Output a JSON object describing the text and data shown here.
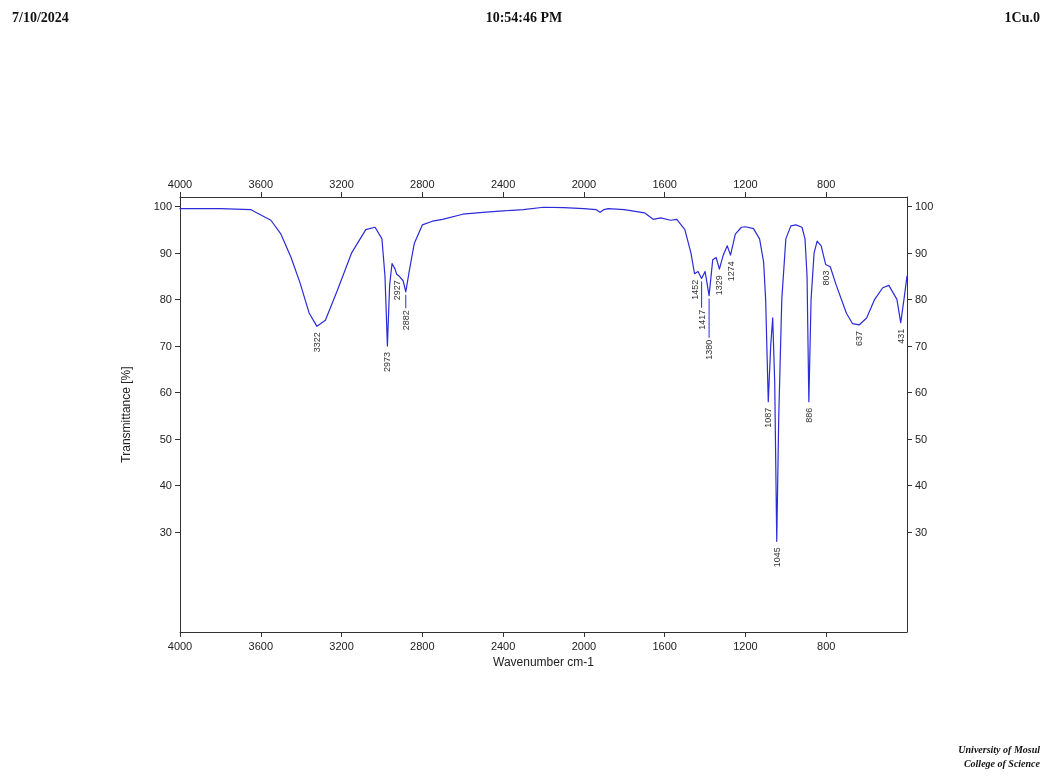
{
  "chart_data": {
    "type": "line",
    "xlabel": "Wavenumber cm-1",
    "ylabel": "Transmittance [%]",
    "annotations": [
      "7/10/2024",
      "10:54:46 PM",
      "1Cu.0",
      "University of Mosul",
      "College of Science",
      {
        "text": "3322",
        "x": 3322,
        "y": 74.2
      },
      {
        "text": "2973",
        "x": 2973,
        "y": 70
      },
      {
        "text": "2927",
        "x": 2927,
        "y": 85.4
      },
      {
        "text": "2882",
        "x": 2882,
        "y": 81.6
      },
      {
        "text": "1452",
        "x": 1452,
        "y": 85.5
      },
      {
        "text": "1417",
        "x": 1417,
        "y": 84.5
      },
      {
        "text": "1380",
        "x": 1380,
        "y": 80.8
      },
      {
        "text": "1329",
        "x": 1329,
        "y": 86.5
      },
      {
        "text": "1274",
        "x": 1274,
        "y": 89.5
      },
      {
        "text": "1087",
        "x": 1087,
        "y": 58
      },
      {
        "text": "1045",
        "x": 1045,
        "y": 28
      },
      {
        "text": "886",
        "x": 886,
        "y": 58
      },
      {
        "text": "803",
        "x": 803,
        "y": 87.5
      },
      {
        "text": "637",
        "x": 637,
        "y": 74.5
      },
      {
        "text": "431",
        "x": 431,
        "y": 75
      }
    ],
    "series": [
      {
        "color": "#2b2bd9",
        "x": [
          4000,
          3800,
          3650,
          3550,
          3500,
          3450,
          3406,
          3360,
          3322,
          3280,
          3220,
          3150,
          3080,
          3034,
          3000,
          2985,
          2973,
          2962,
          2950,
          2935,
          2927,
          2915,
          2895,
          2882,
          2865,
          2840,
          2800,
          2750,
          2700,
          2600,
          2500,
          2400,
          2300,
          2200,
          2100,
          2000,
          1940,
          1920,
          1900,
          1880,
          1800,
          1700,
          1657,
          1620,
          1570,
          1540,
          1500,
          1470,
          1452,
          1435,
          1417,
          1400,
          1380,
          1362,
          1345,
          1329,
          1310,
          1290,
          1274,
          1250,
          1220,
          1200,
          1160,
          1130,
          1110,
          1100,
          1087,
          1075,
          1065,
          1055,
          1045,
          1035,
          1020,
          1000,
          975,
          950,
          920,
          905,
          895,
          886,
          875,
          860,
          845,
          825,
          803,
          780,
          750,
          700,
          670,
          637,
          600,
          560,
          520,
          490,
          470,
          450,
          431,
          415,
          400
        ],
        "values": [
          99.5,
          99.5,
          99.3,
          97,
          94,
          89,
          83.6,
          77,
          74.2,
          75.5,
          82,
          90,
          95,
          95.5,
          93,
          85,
          70,
          83,
          87.7,
          86.5,
          85.4,
          85,
          84,
          81.6,
          86,
          92,
          96,
          96.8,
          97.2,
          98.3,
          98.7,
          99,
          99.3,
          99.8,
          99.7,
          99.5,
          99.3,
          98.7,
          99.3,
          99.5,
          99.3,
          98.6,
          97.2,
          97.5,
          97,
          97.2,
          95,
          90,
          85.5,
          86,
          84.5,
          86,
          80.8,
          88.5,
          89,
          86.5,
          89.5,
          91.5,
          89.5,
          94,
          95.5,
          95.6,
          95.2,
          93,
          88,
          80,
          58,
          70,
          76,
          62,
          28,
          55,
          80,
          93,
          95.8,
          96,
          95.5,
          93,
          85,
          58,
          80,
          90,
          92.5,
          91.5,
          87.5,
          87,
          83,
          77,
          74.8,
          74.5,
          76,
          80,
          82.5,
          83,
          81.5,
          80,
          75,
          80,
          85
        ]
      }
    ],
    "xlim": [
      4000,
      400
    ],
    "xticks": [
      4000,
      3600,
      3200,
      2800,
      2400,
      2000,
      1600,
      1200,
      800
    ],
    "x2lim": [
      4000,
      400
    ],
    "x2ticks": [
      4000,
      3600,
      3200,
      2800,
      2400,
      2000,
      1600,
      1200,
      800
    ],
    "ylim": [
      8.5,
      102
    ],
    "yticks": [
      30,
      40,
      50,
      60,
      70,
      80,
      90,
      100
    ],
    "y2lim": [
      8.5,
      102
    ],
    "y2ticks": [
      30,
      40,
      50,
      60,
      70,
      80,
      90,
      100
    ],
    "grid": false,
    "marker": "none",
    "line_style": "solid"
  }
}
